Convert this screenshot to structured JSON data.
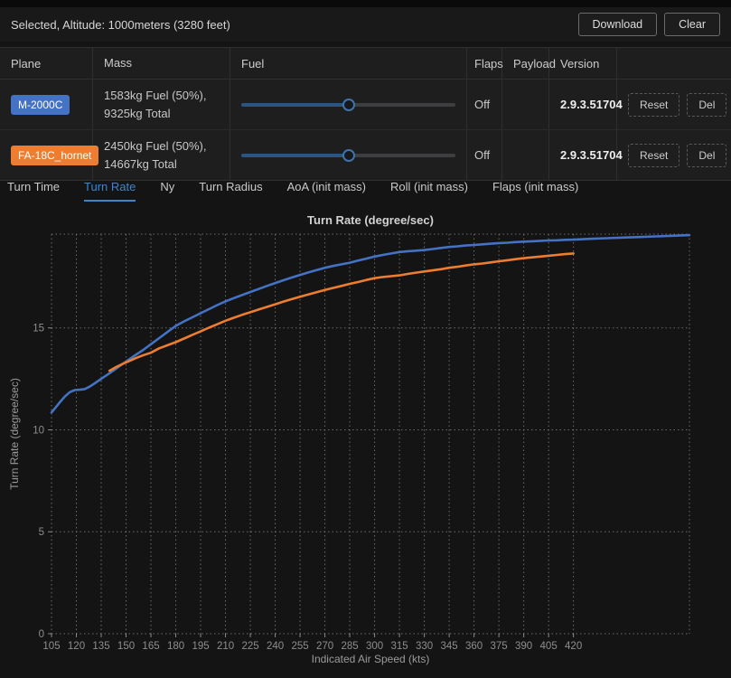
{
  "header": {
    "selection_label": "Selected, Altitude: 1000meters (3280 feet)",
    "download_label": "Download",
    "clear_label": "Clear"
  },
  "table": {
    "columns": [
      "Plane",
      "Mass",
      "Fuel",
      "Flaps",
      "Payload",
      "Version",
      ""
    ],
    "rows": [
      {
        "plane": "M-2000C",
        "badge_color": "#4472c4",
        "mass": "1583kg Fuel (50%), 9325kg Total",
        "fuel_slider_percent": "50%",
        "flaps": "Off",
        "payload": "",
        "version": "2.9.3.51704",
        "reset_label": "Reset",
        "del_label": "Del"
      },
      {
        "plane": "FA-18C_hornet",
        "badge_color": "#ed7d31",
        "mass": "2450kg Fuel (50%), 14667kg Total",
        "fuel_slider_percent": "50%",
        "flaps": "Off",
        "payload": "",
        "version": "2.9.3.51704",
        "reset_label": "Reset",
        "del_label": "Del"
      }
    ]
  },
  "tabs": [
    {
      "label": "Turn Time",
      "active": false
    },
    {
      "label": "Turn Rate",
      "active": true
    },
    {
      "label": "Ny",
      "active": false
    },
    {
      "label": "Turn Radius",
      "active": false
    },
    {
      "label": "AoA (init mass)",
      "active": false
    },
    {
      "label": "Roll (init mass)",
      "active": false
    },
    {
      "label": "Flaps (init mass)",
      "active": false
    }
  ],
  "chart_data": {
    "type": "line",
    "title": "Turn Rate (degree/sec)",
    "xlabel": "Indicated Air Speed (kts)",
    "ylabel": "Turn Rate (degree/sec)",
    "xlim": [
      105,
      490
    ],
    "ylim": [
      0,
      19.6
    ],
    "x_ticks": [
      105,
      120,
      135,
      150,
      165,
      180,
      195,
      210,
      225,
      240,
      255,
      270,
      285,
      300,
      315,
      330,
      345,
      360,
      375,
      390,
      405,
      420
    ],
    "y_ticks": [
      0,
      5,
      10,
      15
    ],
    "grid": "dotted",
    "grid_color": "#8a8a8a",
    "tick_label_color": "#8e8e8e",
    "title_color": "#d2d2d2",
    "axis_label_color": "#9a9a9a",
    "legend": "none",
    "series": [
      {
        "name": "M-2000C",
        "color": "#4472c4",
        "points": [
          [
            105,
            10.85
          ],
          [
            107,
            11.05
          ],
          [
            110,
            11.35
          ],
          [
            113,
            11.63
          ],
          [
            116,
            11.85
          ],
          [
            119,
            11.95
          ],
          [
            122,
            11.97
          ],
          [
            125,
            12.0
          ],
          [
            128,
            12.12
          ],
          [
            131,
            12.28
          ],
          [
            135,
            12.5
          ],
          [
            139,
            12.72
          ],
          [
            143,
            12.95
          ],
          [
            147,
            13.18
          ],
          [
            150,
            13.35
          ],
          [
            155,
            13.63
          ],
          [
            160,
            13.9
          ],
          [
            165,
            14.2
          ],
          [
            170,
            14.5
          ],
          [
            175,
            14.8
          ],
          [
            180,
            15.1
          ],
          [
            185,
            15.32
          ],
          [
            190,
            15.52
          ],
          [
            195,
            15.72
          ],
          [
            200,
            15.92
          ],
          [
            205,
            16.12
          ],
          [
            210,
            16.3
          ],
          [
            215,
            16.46
          ],
          [
            220,
            16.61
          ],
          [
            225,
            16.76
          ],
          [
            230,
            16.91
          ],
          [
            235,
            17.06
          ],
          [
            240,
            17.2
          ],
          [
            245,
            17.34
          ],
          [
            250,
            17.47
          ],
          [
            255,
            17.6
          ],
          [
            260,
            17.72
          ],
          [
            265,
            17.84
          ],
          [
            270,
            17.95
          ],
          [
            275,
            18.04
          ],
          [
            280,
            18.12
          ],
          [
            285,
            18.2
          ],
          [
            290,
            18.3
          ],
          [
            295,
            18.4
          ],
          [
            300,
            18.5
          ],
          [
            305,
            18.58
          ],
          [
            310,
            18.65
          ],
          [
            315,
            18.72
          ],
          [
            320,
            18.76
          ],
          [
            325,
            18.79
          ],
          [
            330,
            18.82
          ],
          [
            335,
            18.87
          ],
          [
            340,
            18.92
          ],
          [
            345,
            18.97
          ],
          [
            350,
            19.0
          ],
          [
            355,
            19.04
          ],
          [
            360,
            19.07
          ],
          [
            365,
            19.1
          ],
          [
            370,
            19.13
          ],
          [
            375,
            19.16
          ],
          [
            380,
            19.18
          ],
          [
            385,
            19.21
          ],
          [
            390,
            19.23
          ],
          [
            395,
            19.25
          ],
          [
            400,
            19.27
          ],
          [
            405,
            19.29
          ],
          [
            410,
            19.3
          ],
          [
            415,
            19.32
          ],
          [
            420,
            19.33
          ],
          [
            430,
            19.37
          ],
          [
            440,
            19.4
          ],
          [
            450,
            19.43
          ],
          [
            460,
            19.46
          ],
          [
            470,
            19.49
          ],
          [
            480,
            19.52
          ],
          [
            490,
            19.55
          ]
        ]
      },
      {
        "name": "FA-18C_hornet",
        "color": "#ed7d31",
        "points": [
          [
            140,
            12.9
          ],
          [
            144,
            13.08
          ],
          [
            148,
            13.24
          ],
          [
            152,
            13.38
          ],
          [
            156,
            13.52
          ],
          [
            160,
            13.65
          ],
          [
            165,
            13.78
          ],
          [
            170,
            14.0
          ],
          [
            175,
            14.15
          ],
          [
            180,
            14.3
          ],
          [
            185,
            14.48
          ],
          [
            190,
            14.66
          ],
          [
            195,
            14.83
          ],
          [
            200,
            15.01
          ],
          [
            205,
            15.18
          ],
          [
            210,
            15.35
          ],
          [
            215,
            15.5
          ],
          [
            220,
            15.64
          ],
          [
            225,
            15.77
          ],
          [
            230,
            15.9
          ],
          [
            235,
            16.03
          ],
          [
            240,
            16.16
          ],
          [
            245,
            16.29
          ],
          [
            250,
            16.41
          ],
          [
            255,
            16.53
          ],
          [
            260,
            16.64
          ],
          [
            265,
            16.75
          ],
          [
            270,
            16.86
          ],
          [
            275,
            16.96
          ],
          [
            280,
            17.06
          ],
          [
            285,
            17.16
          ],
          [
            290,
            17.25
          ],
          [
            295,
            17.35
          ],
          [
            300,
            17.44
          ],
          [
            305,
            17.5
          ],
          [
            310,
            17.54
          ],
          [
            315,
            17.58
          ],
          [
            320,
            17.65
          ],
          [
            325,
            17.71
          ],
          [
            330,
            17.77
          ],
          [
            335,
            17.82
          ],
          [
            340,
            17.88
          ],
          [
            345,
            17.95
          ],
          [
            350,
            18.0
          ],
          [
            355,
            18.06
          ],
          [
            360,
            18.12
          ],
          [
            365,
            18.16
          ],
          [
            370,
            18.21
          ],
          [
            375,
            18.27
          ],
          [
            380,
            18.32
          ],
          [
            385,
            18.37
          ],
          [
            390,
            18.42
          ],
          [
            395,
            18.46
          ],
          [
            400,
            18.5
          ],
          [
            405,
            18.54
          ],
          [
            410,
            18.58
          ],
          [
            415,
            18.62
          ],
          [
            420,
            18.65
          ]
        ]
      }
    ]
  }
}
